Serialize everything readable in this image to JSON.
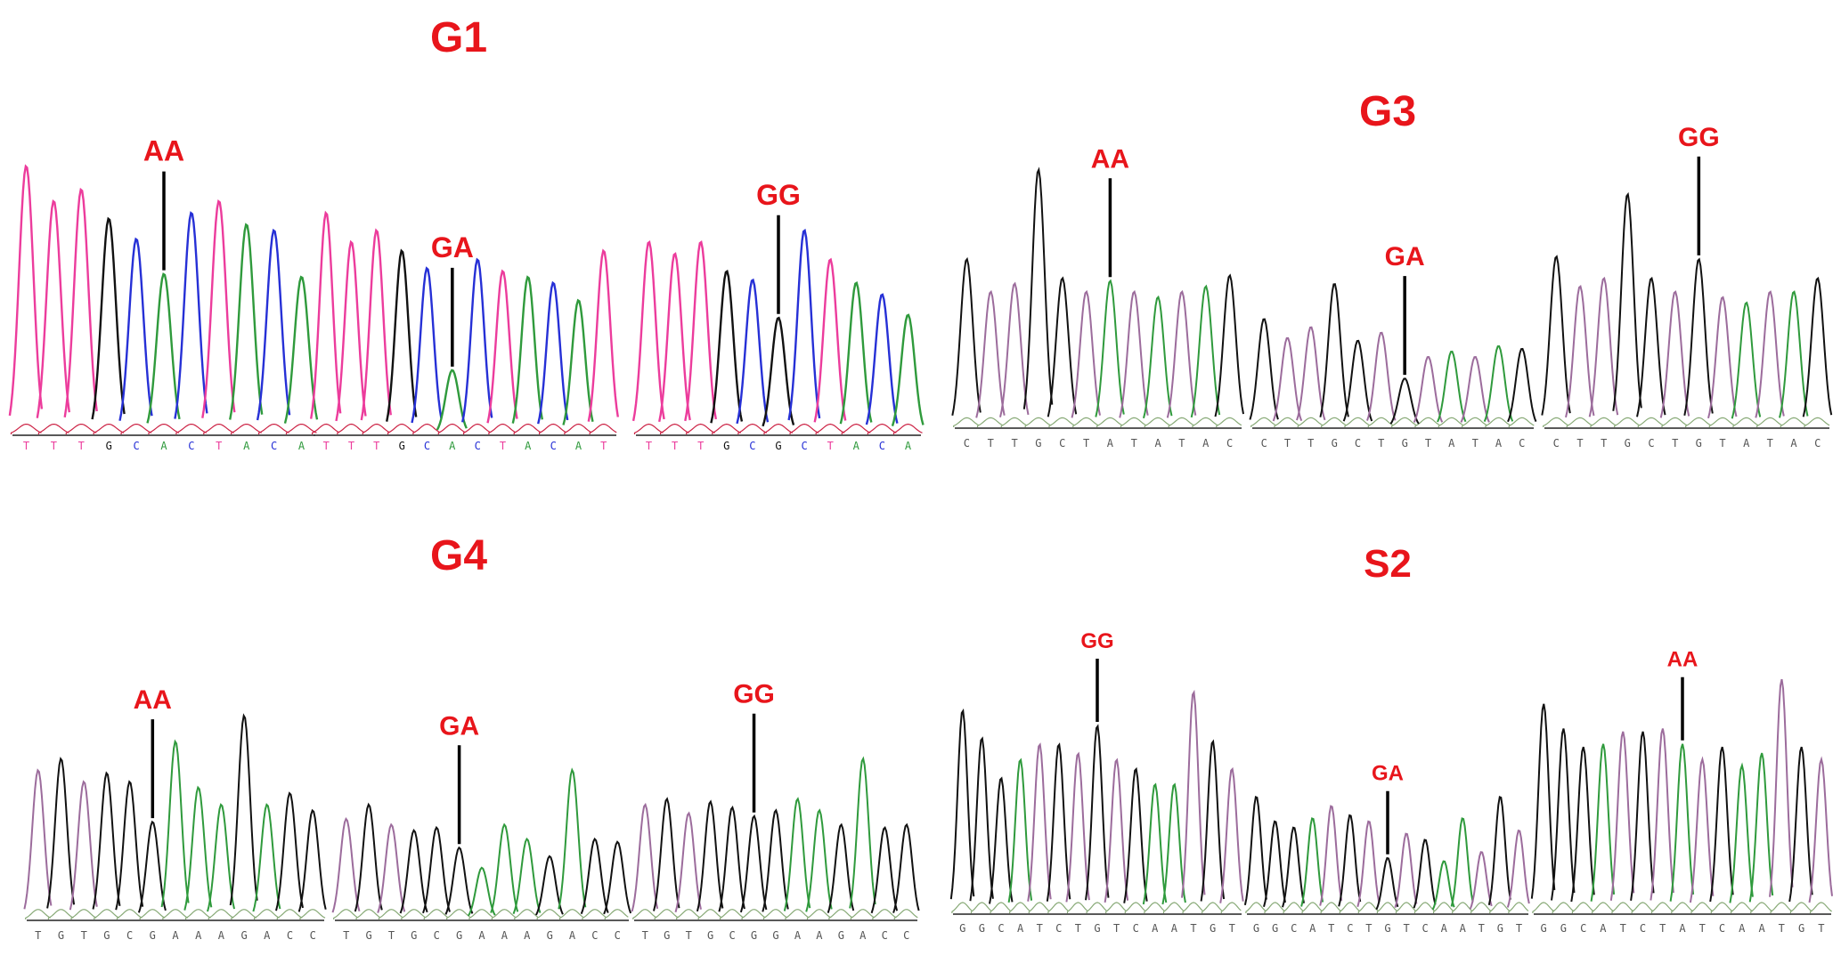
{
  "colors": {
    "A": "#2f9a3c",
    "C": "#2630d6",
    "G": "#111111",
    "T": "#ec3c9c",
    "T_alt": "#9c6c9c",
    "label": "#e8151b"
  },
  "panels": [
    {
      "id": "g1",
      "title": "G1",
      "style": "color",
      "traces": [
        {
          "genotype": "AA",
          "bases": "TTTGCACTACA",
          "peaks": [
            0.92,
            0.8,
            0.84,
            0.74,
            0.67,
            0.55,
            0.76,
            0.8,
            0.72,
            0.7,
            0.54
          ]
        },
        {
          "genotype": "GA",
          "bases": "TTTGCACTACAT",
          "peaks": [
            0.76,
            0.66,
            0.7,
            0.63,
            0.57,
            0.22,
            0.6,
            0.56,
            0.54,
            0.52,
            0.46,
            0.63
          ]
        },
        {
          "genotype": "GG",
          "bases": "TTTGCGCTACA",
          "peaks": [
            0.66,
            0.62,
            0.66,
            0.56,
            0.53,
            0.4,
            0.7,
            0.6,
            0.52,
            0.48,
            0.41
          ]
        }
      ]
    },
    {
      "id": "g3",
      "title": "G3",
      "style": "mono",
      "traces": [
        {
          "genotype": "AA",
          "bases": "CTTGCTATATAC",
          "peaks": [
            0.62,
            0.5,
            0.53,
            0.95,
            0.55,
            0.5,
            0.54,
            0.5,
            0.48,
            0.5,
            0.52,
            0.56
          ]
        },
        {
          "genotype": "GA",
          "bases": "CTTGCTGTATAC",
          "peaks": [
            0.4,
            0.33,
            0.37,
            0.53,
            0.32,
            0.35,
            0.18,
            0.26,
            0.28,
            0.26,
            0.3,
            0.29
          ]
        },
        {
          "genotype": "GG",
          "bases": "CTTGCTGTATAC",
          "peaks": [
            0.63,
            0.52,
            0.55,
            0.86,
            0.55,
            0.5,
            0.62,
            0.48,
            0.46,
            0.5,
            0.5,
            0.55
          ]
        }
      ]
    },
    {
      "id": "g4",
      "title": "G4",
      "style": "mono",
      "traces": [
        {
          "genotype": "AA",
          "bases": "TGTGCGAAAGACC",
          "peaks": [
            0.52,
            0.56,
            0.48,
            0.51,
            0.48,
            0.34,
            0.62,
            0.46,
            0.4,
            0.71,
            0.4,
            0.44,
            0.38
          ]
        },
        {
          "genotype": "GA",
          "bases": "TGTGCGAAAGACC",
          "peaks": [
            0.35,
            0.4,
            0.33,
            0.31,
            0.32,
            0.25,
            0.18,
            0.33,
            0.28,
            0.22,
            0.52,
            0.28,
            0.27
          ]
        },
        {
          "genotype": "GG",
          "bases": "TGTGCGGAAGACC",
          "peaks": [
            0.4,
            0.42,
            0.37,
            0.41,
            0.39,
            0.36,
            0.38,
            0.42,
            0.38,
            0.33,
            0.56,
            0.32,
            0.33
          ]
        }
      ]
    },
    {
      "id": "s2",
      "title": "S2",
      "style": "mono",
      "traces": [
        {
          "genotype": "GG",
          "bases": "GGCATCTGTCAATGT",
          "peaks": [
            0.66,
            0.57,
            0.44,
            0.5,
            0.55,
            0.55,
            0.52,
            0.61,
            0.5,
            0.47,
            0.42,
            0.42,
            0.72,
            0.56,
            0.47
          ]
        },
        {
          "genotype": "GA",
          "bases": "GGCATCTGTCAATGT",
          "peaks": [
            0.38,
            0.3,
            0.28,
            0.31,
            0.35,
            0.32,
            0.3,
            0.18,
            0.26,
            0.24,
            0.17,
            0.31,
            0.2,
            0.38,
            0.27
          ]
        },
        {
          "genotype": "AA",
          "bases": "GGCATCTATCAATGT",
          "peaks": [
            0.68,
            0.6,
            0.54,
            0.55,
            0.59,
            0.59,
            0.6,
            0.55,
            0.5,
            0.54,
            0.48,
            0.52,
            0.76,
            0.54,
            0.5
          ]
        }
      ]
    }
  ]
}
